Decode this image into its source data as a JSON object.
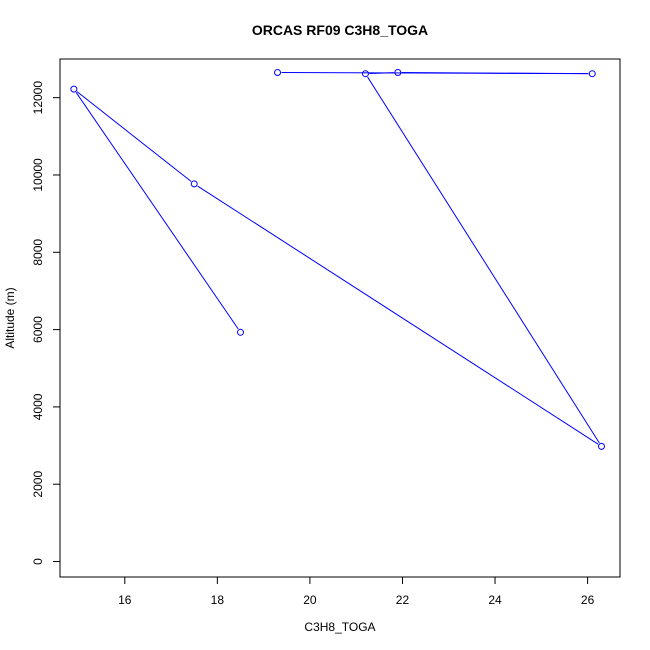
{
  "chart_data": {
    "type": "line",
    "title": "ORCAS RF09 C3H8_TOGA",
    "xlabel": "C3H8_TOGA",
    "ylabel": "Altitude (m)",
    "xlim": [
      14.6,
      26.7
    ],
    "ylim": [
      -400,
      13000
    ],
    "x_ticks": [
      16,
      18,
      20,
      22,
      24,
      26
    ],
    "y_ticks": [
      0,
      2000,
      4000,
      6000,
      8000,
      10000,
      12000
    ],
    "x_tick_labels": [
      "16",
      "18",
      "20",
      "22",
      "24",
      "26"
    ],
    "y_tick_labels": [
      "0",
      "2000",
      "4000",
      "6000",
      "8000",
      "10000",
      "12000"
    ],
    "grid": false,
    "markers": "open-circle",
    "color": "#0000ff",
    "series": [
      {
        "x": [
          19.3,
          26.1,
          21.9,
          21.2,
          26.3,
          17.5,
          14.9,
          18.5
        ],
        "y": [
          12650,
          12620,
          12650,
          12620,
          2980,
          9770,
          12220,
          5930
        ]
      }
    ]
  }
}
